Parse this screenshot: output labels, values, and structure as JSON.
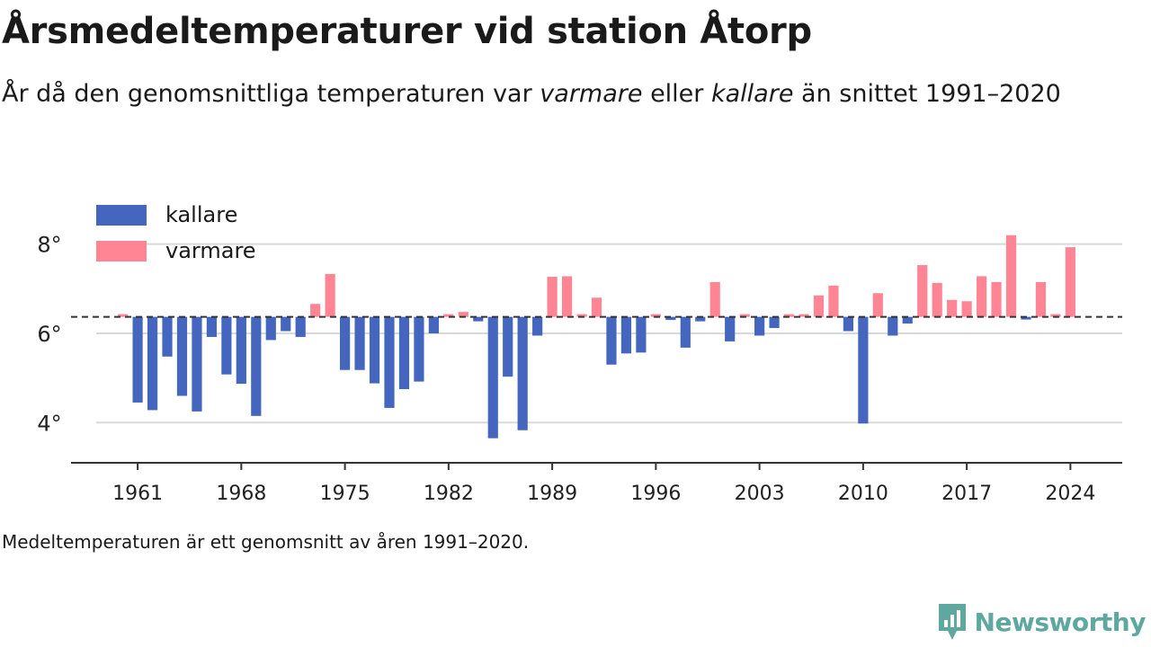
{
  "title": "Årsmedeltemperaturer vid station Åtorp",
  "subtitle": {
    "part1": "År då den genomsnittliga temperaturen var ",
    "warm_word": "varmare",
    "part2": " eller ",
    "cold_word": "kallare",
    "part3": " än snittet 1991–2020"
  },
  "footnote": "Medeltemperaturen är ett genomsnitt av åren 1991–2020.",
  "brand": "Newsworthy",
  "colors": {
    "kallare": "#4466bf",
    "varmare": "#ff8595",
    "baseline": "#333333",
    "grid": "#d9d9d9",
    "brand": "#5fa8a0"
  },
  "chart_data": {
    "type": "bar",
    "legend": [
      {
        "name": "kallare",
        "color": "#4466bf"
      },
      {
        "name": "varmare",
        "color": "#ff8595"
      }
    ],
    "legend_position": "top-left",
    "baseline": 6.37,
    "ylim": [
      3.1,
      9.0
    ],
    "yticks": [
      4,
      6,
      8
    ],
    "ytick_labels": [
      "4°",
      "6°",
      "8°"
    ],
    "xlim": [
      1956.5,
      2027.5
    ],
    "xticks": [
      1961,
      1968,
      1975,
      1982,
      1989,
      1996,
      2003,
      2010,
      2017,
      2024
    ],
    "grid": true,
    "years": [
      1960,
      1961,
      1962,
      1963,
      1964,
      1965,
      1966,
      1967,
      1968,
      1969,
      1970,
      1971,
      1972,
      1973,
      1974,
      1975,
      1976,
      1977,
      1978,
      1979,
      1980,
      1981,
      1982,
      1983,
      1984,
      1985,
      1986,
      1987,
      1988,
      1989,
      1990,
      1991,
      1992,
      1993,
      1994,
      1995,
      1996,
      1997,
      1998,
      1999,
      2000,
      2001,
      2002,
      2003,
      2004,
      2005,
      2006,
      2007,
      2008,
      2009,
      2010,
      2011,
      2012,
      2013,
      2014,
      2015,
      2016,
      2017,
      2018,
      2019,
      2020,
      2021,
      2022,
      2023,
      2024
    ],
    "values": [
      6.43,
      4.45,
      4.28,
      5.48,
      4.6,
      4.25,
      5.92,
      5.08,
      4.87,
      4.15,
      5.85,
      6.05,
      5.92,
      6.66,
      7.33,
      5.18,
      5.18,
      4.88,
      4.33,
      4.75,
      4.92,
      6.0,
      6.37,
      6.48,
      6.27,
      3.65,
      5.03,
      3.83,
      5.95,
      7.27,
      7.28,
      6.37,
      6.8,
      5.3,
      5.55,
      5.57,
      6.37,
      6.3,
      5.68,
      6.27,
      7.15,
      5.82,
      6.37,
      5.95,
      6.12,
      6.4,
      6.37,
      6.85,
      7.07,
      6.05,
      3.98,
      6.9,
      5.95,
      6.22,
      7.53,
      7.13,
      6.75,
      6.72,
      7.28,
      7.15,
      8.2,
      6.33,
      7.15,
      6.37,
      7.93
    ]
  }
}
